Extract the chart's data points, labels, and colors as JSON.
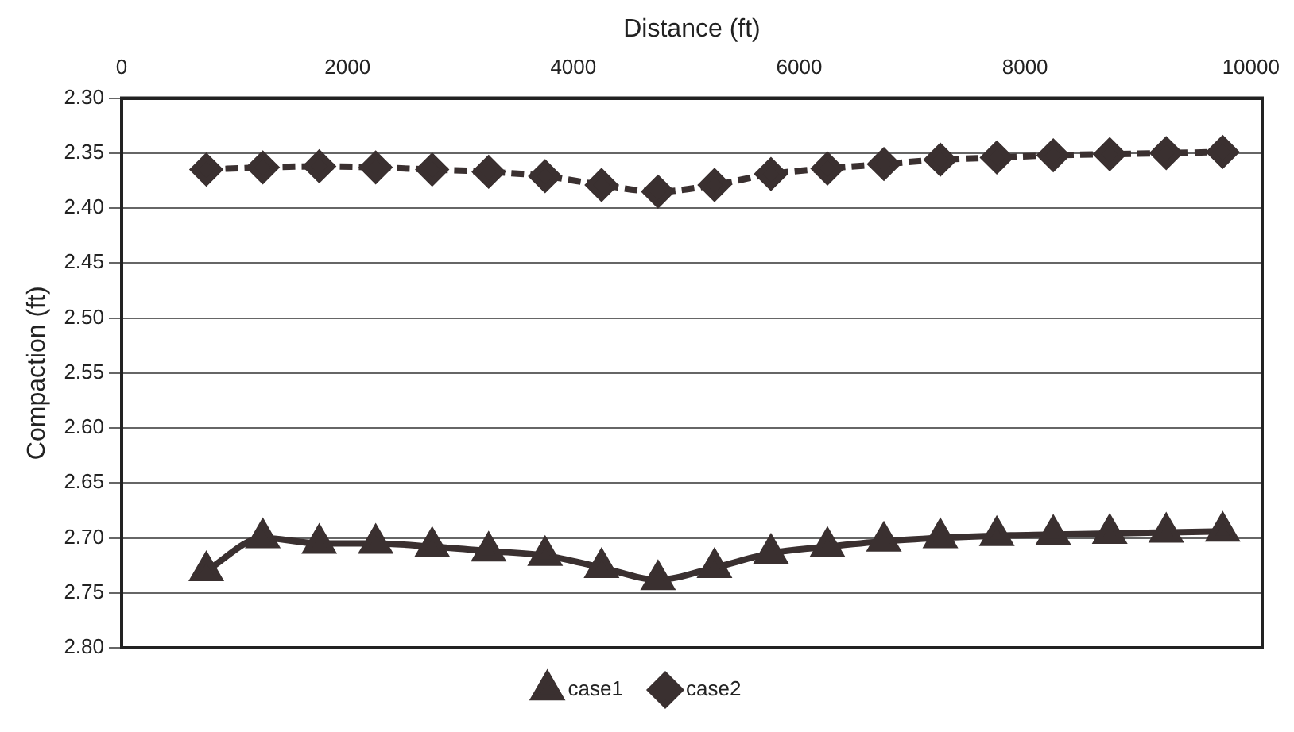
{
  "chart_data": {
    "type": "line",
    "xlabel": "Distance (ft)",
    "ylabel": "Compaction (ft)",
    "x": [
      750,
      1250,
      1750,
      2250,
      2750,
      3250,
      3750,
      4250,
      4750,
      5250,
      5750,
      6250,
      6750,
      7250,
      7750,
      8250,
      8750,
      9250,
      9750
    ],
    "xlim": [
      0,
      10100
    ],
    "xticks": [
      0,
      2000,
      4000,
      6000,
      8000,
      10000
    ],
    "ylim": [
      2.8,
      2.3
    ],
    "yticks": [
      {
        "value": 2.3,
        "label": "2.30"
      },
      {
        "value": 2.35,
        "label": "2.35"
      },
      {
        "value": 2.4,
        "label": "2.40"
      },
      {
        "value": 2.45,
        "label": "2.45"
      },
      {
        "value": 2.5,
        "label": "2.50"
      },
      {
        "value": 2.55,
        "label": "2.55"
      },
      {
        "value": 2.6,
        "label": "2.60"
      },
      {
        "value": 2.65,
        "label": "2.65"
      },
      {
        "value": 2.7,
        "label": "2.70"
      },
      {
        "value": 2.75,
        "label": "2.75"
      },
      {
        "value": 2.8,
        "label": "2.80"
      }
    ],
    "grid": "y",
    "legend": "bottom",
    "series": [
      {
        "name": "case1",
        "color": "#3a3030",
        "marker": "triangle",
        "line_style": "solid",
        "values": [
          2.73,
          2.7,
          2.705,
          2.705,
          2.708,
          2.712,
          2.716,
          2.727,
          2.738,
          2.727,
          2.714,
          2.708,
          2.703,
          2.7,
          2.698,
          2.697,
          2.696,
          2.695,
          2.694
        ]
      },
      {
        "name": "case2",
        "color": "#3a3030",
        "marker": "diamond",
        "line_style": "dashed",
        "values": [
          2.365,
          2.363,
          2.362,
          2.363,
          2.365,
          2.367,
          2.371,
          2.379,
          2.385,
          2.379,
          2.369,
          2.364,
          2.36,
          2.356,
          2.354,
          2.352,
          2.351,
          2.35,
          2.349
        ]
      }
    ]
  }
}
